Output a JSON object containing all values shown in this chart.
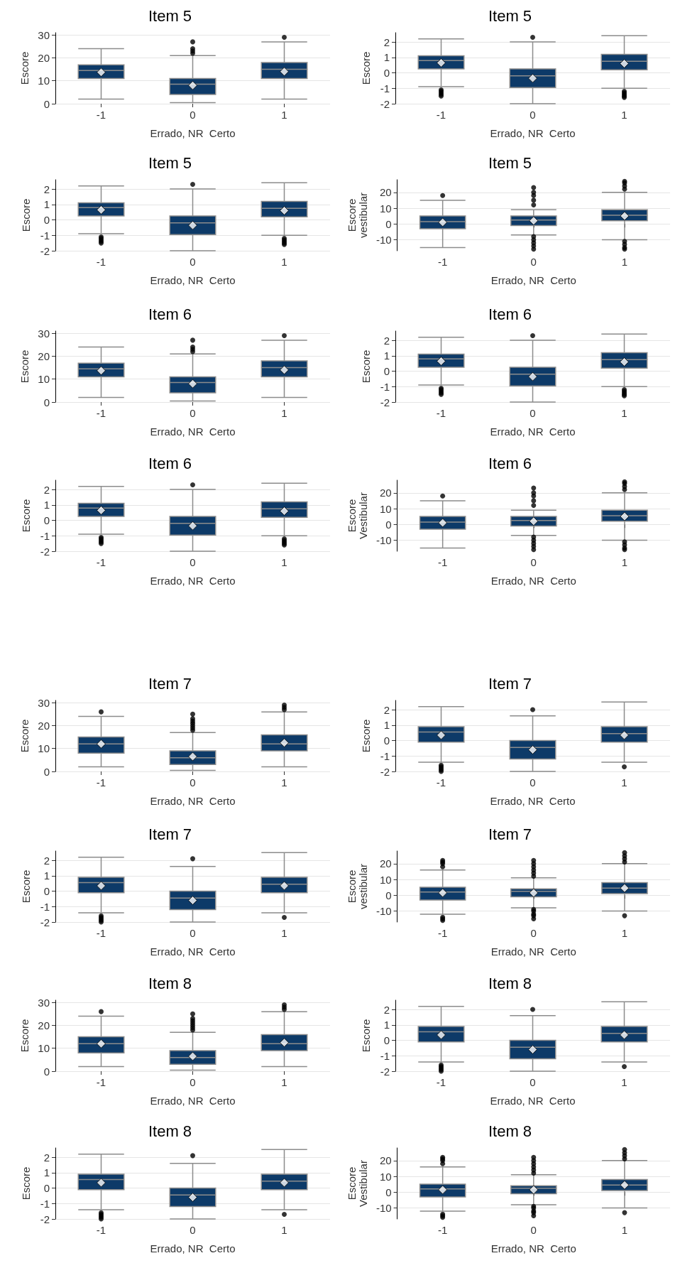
{
  "chart_data": [
    {
      "type": "box",
      "title": "Item 5",
      "xlabel": "Errado, NR  Certo",
      "ylabel": "Escore",
      "categories": [
        "-1",
        "0",
        "1"
      ],
      "color": "#0d3a68",
      "grid": "y",
      "ylim": [
        0,
        31
      ],
      "yticks": [
        0,
        10,
        20,
        30
      ],
      "boxes": [
        {
          "low": 2,
          "q1": 11,
          "median": 14.5,
          "q3": 17,
          "high": 24,
          "mean": 13.7
        },
        {
          "low": 0.5,
          "q1": 4,
          "median": 8.5,
          "q3": 11,
          "high": 21,
          "mean": 8,
          "outliers": [
            22,
            23,
            24,
            27
          ]
        },
        {
          "low": 2,
          "q1": 11,
          "median": 15,
          "q3": 18,
          "high": 27,
          "mean": 14,
          "outliers": [
            29
          ]
        }
      ]
    },
    {
      "type": "box",
      "title": "Item 5",
      "xlabel": "Errado, NR  Certo",
      "ylabel": "Escore",
      "categories": [
        "-1",
        "0",
        "1"
      ],
      "color": "#0d3a68",
      "grid": "y",
      "ylim": [
        -2,
        2.6
      ],
      "yticks": [
        -2,
        -1,
        0,
        1,
        2
      ],
      "boxes": [
        {
          "low": -0.9,
          "q1": 0.25,
          "median": 0.8,
          "q3": 1.1,
          "high": 2.2,
          "mean": 0.65,
          "outliers": [
            -1.1,
            -1.2,
            -1.3,
            -1.4,
            -1.5
          ]
        },
        {
          "low": -2,
          "q1": -0.95,
          "median": -0.2,
          "q3": 0.25,
          "high": 2,
          "mean": -0.35,
          "outliers": [
            2.3
          ]
        },
        {
          "low": -1,
          "q1": 0.2,
          "median": 0.75,
          "q3": 1.2,
          "high": 2.4,
          "mean": 0.6,
          "outliers": [
            -1.2,
            -1.3,
            -1.4,
            -1.5,
            -1.6
          ]
        }
      ]
    },
    {
      "type": "box",
      "title": "Item 5",
      "xlabel": "Errado, NR  Certo",
      "ylabel": "Escore",
      "categories": [
        "-1",
        "0",
        "1"
      ],
      "color": "#0d3a68",
      "grid": "y",
      "ylim": [
        -2,
        2.6
      ],
      "yticks": [
        -2,
        -1,
        0,
        1,
        2
      ],
      "boxes": [
        {
          "low": -0.9,
          "q1": 0.25,
          "median": 0.8,
          "q3": 1.1,
          "high": 2.2,
          "mean": 0.65,
          "outliers": [
            -1.1,
            -1.2,
            -1.3,
            -1.4,
            -1.5
          ]
        },
        {
          "low": -2,
          "q1": -0.95,
          "median": -0.2,
          "q3": 0.25,
          "high": 2,
          "mean": -0.35,
          "outliers": [
            2.3
          ]
        },
        {
          "low": -1,
          "q1": 0.2,
          "median": 0.75,
          "q3": 1.2,
          "high": 2.4,
          "mean": 0.6,
          "outliers": [
            -1.2,
            -1.3,
            -1.4,
            -1.5,
            -1.6
          ]
        }
      ]
    },
    {
      "type": "box",
      "title": "Item 5",
      "xlabel": "Errado, NR  Certo",
      "ylabel": "Escore vestibular",
      "categories": [
        "-1",
        "0",
        "1"
      ],
      "color": "#0d3a68",
      "grid": "y",
      "ylim": [
        -17,
        28
      ],
      "yticks": [
        -10,
        0,
        10,
        20
      ],
      "boxes": [
        {
          "low": -15,
          "q1": -3,
          "median": 1.5,
          "q3": 5,
          "high": 15,
          "mean": 1,
          "outliers": [
            18
          ]
        },
        {
          "low": -7,
          "q1": -1,
          "median": 2.5,
          "q3": 5,
          "high": 9,
          "mean": 2,
          "outliers": [
            -8,
            -10,
            -12,
            -14,
            -16,
            12,
            15,
            18,
            20,
            23
          ]
        },
        {
          "low": -10,
          "q1": 2,
          "median": 5.5,
          "q3": 9,
          "high": 20,
          "mean": 5,
          "outliers": [
            -11,
            -13,
            -15,
            -16,
            22,
            24,
            26,
            27
          ]
        }
      ]
    },
    {
      "type": "box",
      "title": "Item 6",
      "xlabel": "Errado, NR  Certo",
      "ylabel": "Escore",
      "categories": [
        "-1",
        "0",
        "1"
      ],
      "color": "#0d3a68",
      "grid": "y",
      "ylim": [
        0,
        31
      ],
      "yticks": [
        0,
        10,
        20,
        30
      ],
      "boxes": [
        {
          "low": 2,
          "q1": 11,
          "median": 14.5,
          "q3": 17,
          "high": 24,
          "mean": 13.7
        },
        {
          "low": 0.5,
          "q1": 4,
          "median": 8.5,
          "q3": 11,
          "high": 21,
          "mean": 8,
          "outliers": [
            22,
            23,
            24,
            27
          ]
        },
        {
          "low": 2,
          "q1": 11,
          "median": 15,
          "q3": 18,
          "high": 27,
          "mean": 14,
          "outliers": [
            29
          ]
        }
      ]
    },
    {
      "type": "box",
      "title": "Item 6",
      "xlabel": "Errado, NR  Certo",
      "ylabel": "Escore",
      "categories": [
        "-1",
        "0",
        "1"
      ],
      "color": "#0d3a68",
      "grid": "y",
      "ylim": [
        -2,
        2.6
      ],
      "yticks": [
        -2,
        -1,
        0,
        1,
        2
      ],
      "boxes": [
        {
          "low": -0.9,
          "q1": 0.25,
          "median": 0.8,
          "q3": 1.1,
          "high": 2.2,
          "mean": 0.65,
          "outliers": [
            -1.1,
            -1.2,
            -1.3,
            -1.4,
            -1.5
          ]
        },
        {
          "low": -2,
          "q1": -0.95,
          "median": -0.2,
          "q3": 0.25,
          "high": 2,
          "mean": -0.35,
          "outliers": [
            2.3
          ]
        },
        {
          "low": -1,
          "q1": 0.2,
          "median": 0.75,
          "q3": 1.2,
          "high": 2.4,
          "mean": 0.6,
          "outliers": [
            -1.2,
            -1.3,
            -1.4,
            -1.5,
            -1.6
          ]
        }
      ]
    },
    {
      "type": "box",
      "title": "Item 6",
      "xlabel": "Errado, NR  Certo",
      "ylabel": "Escore",
      "categories": [
        "-1",
        "0",
        "1"
      ],
      "color": "#0d3a68",
      "grid": "y",
      "ylim": [
        -2,
        2.6
      ],
      "yticks": [
        -2,
        -1,
        0,
        1,
        2
      ],
      "boxes": [
        {
          "low": -0.9,
          "q1": 0.25,
          "median": 0.8,
          "q3": 1.1,
          "high": 2.2,
          "mean": 0.65,
          "outliers": [
            -1.1,
            -1.2,
            -1.3,
            -1.4,
            -1.5
          ]
        },
        {
          "low": -2,
          "q1": -0.95,
          "median": -0.2,
          "q3": 0.25,
          "high": 2,
          "mean": -0.35,
          "outliers": [
            2.3
          ]
        },
        {
          "low": -1,
          "q1": 0.2,
          "median": 0.75,
          "q3": 1.2,
          "high": 2.4,
          "mean": 0.6,
          "outliers": [
            -1.2,
            -1.3,
            -1.4,
            -1.5,
            -1.6
          ]
        }
      ]
    },
    {
      "type": "box",
      "title": "Item 6",
      "xlabel": "Errado, NR  Certo",
      "ylabel": "Escore Vestibular",
      "categories": [
        "-1",
        "0",
        "1"
      ],
      "color": "#0d3a68",
      "grid": "y",
      "ylim": [
        -17,
        28
      ],
      "yticks": [
        -10,
        0,
        10,
        20
      ],
      "boxes": [
        {
          "low": -15,
          "q1": -3,
          "median": 1.5,
          "q3": 5,
          "high": 15,
          "mean": 1,
          "outliers": [
            18
          ]
        },
        {
          "low": -7,
          "q1": -1,
          "median": 2.5,
          "q3": 5,
          "high": 9,
          "mean": 2,
          "outliers": [
            -8,
            -10,
            -12,
            -14,
            -16,
            12,
            15,
            18,
            20,
            23
          ]
        },
        {
          "low": -10,
          "q1": 2,
          "median": 5.5,
          "q3": 9,
          "high": 20,
          "mean": 5,
          "outliers": [
            -11,
            -13,
            -15,
            -16,
            22,
            24,
            26,
            27
          ]
        }
      ]
    },
    {
      "type": "box",
      "title": "Item 7",
      "xlabel": "Errado, NR  Certo",
      "ylabel": "Escore",
      "categories": [
        "-1",
        "0",
        "1"
      ],
      "color": "#0d3a68",
      "grid": "y",
      "ylim": [
        0,
        31
      ],
      "yticks": [
        0,
        10,
        20,
        30
      ],
      "boxes": [
        {
          "low": 2,
          "q1": 8,
          "median": 12,
          "q3": 15,
          "high": 24,
          "mean": 12,
          "outliers": [
            26
          ]
        },
        {
          "low": 0.5,
          "q1": 3,
          "median": 6,
          "q3": 9,
          "high": 17,
          "mean": 6.5,
          "outliers": [
            18,
            19,
            20,
            21,
            22,
            23,
            25
          ]
        },
        {
          "low": 2,
          "q1": 9,
          "median": 12,
          "q3": 16,
          "high": 26,
          "mean": 12.5,
          "outliers": [
            27,
            28,
            29
          ]
        }
      ]
    },
    {
      "type": "box",
      "title": "Item 7",
      "xlabel": "Errado, NR  Certo",
      "ylabel": "Escore",
      "categories": [
        "-1",
        "0",
        "1"
      ],
      "color": "#0d3a68",
      "grid": "y",
      "ylim": [
        -2,
        2.6
      ],
      "yticks": [
        -2,
        -1,
        0,
        1,
        2
      ],
      "boxes": [
        {
          "low": -1.4,
          "q1": -0.1,
          "median": 0.55,
          "q3": 0.9,
          "high": 2.2,
          "mean": 0.35,
          "outliers": [
            -1.6,
            -1.7,
            -1.8,
            -1.9,
            -2
          ]
        },
        {
          "low": -2,
          "q1": -1.2,
          "median": -0.45,
          "q3": 0,
          "high": 1.6,
          "mean": -0.6,
          "outliers": [
            2
          ]
        },
        {
          "low": -1.4,
          "q1": -0.1,
          "median": 0.45,
          "q3": 0.9,
          "high": 2.5,
          "mean": 0.35,
          "outliers": [
            -1.7
          ]
        }
      ]
    },
    {
      "type": "box",
      "title": "Item 7",
      "xlabel": "Errado, NR  Certo",
      "ylabel": "Escore",
      "categories": [
        "-1",
        "0",
        "1"
      ],
      "color": "#0d3a68",
      "grid": "y",
      "ylim": [
        -2,
        2.6
      ],
      "yticks": [
        -2,
        -1,
        0,
        1,
        2
      ],
      "boxes": [
        {
          "low": -1.4,
          "q1": -0.1,
          "median": 0.55,
          "q3": 0.9,
          "high": 2.2,
          "mean": 0.35,
          "outliers": [
            -1.6,
            -1.7,
            -1.8,
            -1.9,
            -2
          ]
        },
        {
          "low": -2,
          "q1": -1.2,
          "median": -0.45,
          "q3": 0,
          "high": 1.6,
          "mean": -0.6,
          "outliers": [
            2.1
          ]
        },
        {
          "low": -1.4,
          "q1": -0.1,
          "median": 0.45,
          "q3": 0.9,
          "high": 2.5,
          "mean": 0.35,
          "outliers": [
            -1.7
          ]
        }
      ]
    },
    {
      "type": "box",
      "title": "Item 7",
      "xlabel": "Errado, NR  Certo",
      "ylabel": "Escore vestibular",
      "categories": [
        "-1",
        "0",
        "1"
      ],
      "color": "#0d3a68",
      "grid": "y",
      "ylim": [
        -17,
        28
      ],
      "yticks": [
        -10,
        0,
        10,
        20
      ],
      "boxes": [
        {
          "low": -12,
          "q1": -3,
          "median": 2,
          "q3": 5,
          "high": 16,
          "mean": 1.5,
          "outliers": [
            -14,
            -15,
            -16,
            18,
            20,
            21,
            22
          ]
        },
        {
          "low": -8,
          "q1": -1,
          "median": 2.5,
          "q3": 4,
          "high": 11,
          "mean": 1.5,
          "outliers": [
            -9,
            -10,
            -12,
            -13,
            -15,
            12,
            14,
            16,
            18,
            20,
            22
          ]
        },
        {
          "low": -10,
          "q1": 1,
          "median": 4.5,
          "q3": 8,
          "high": 20,
          "mean": 4.5,
          "outliers": [
            -13,
            21,
            23,
            25,
            27
          ]
        }
      ]
    },
    {
      "type": "box",
      "title": "Item 8",
      "xlabel": "Errado, NR  Certo",
      "ylabel": "Escore",
      "categories": [
        "-1",
        "0",
        "1"
      ],
      "color": "#0d3a68",
      "grid": "y",
      "ylim": [
        0,
        31
      ],
      "yticks": [
        0,
        10,
        20,
        30
      ],
      "boxes": [
        {
          "low": 2,
          "q1": 8,
          "median": 12,
          "q3": 15,
          "high": 24,
          "mean": 12,
          "outliers": [
            26
          ]
        },
        {
          "low": 0.5,
          "q1": 3,
          "median": 6,
          "q3": 9,
          "high": 17,
          "mean": 6.5,
          "outliers": [
            18,
            19,
            20,
            21,
            22,
            23,
            25
          ]
        },
        {
          "low": 2,
          "q1": 9,
          "median": 12,
          "q3": 16,
          "high": 26,
          "mean": 12.5,
          "outliers": [
            27,
            28,
            29
          ]
        }
      ]
    },
    {
      "type": "box",
      "title": "Item 8",
      "xlabel": "Errado, NR  Certo",
      "ylabel": "Escore",
      "categories": [
        "-1",
        "0",
        "1"
      ],
      "color": "#0d3a68",
      "grid": "y",
      "ylim": [
        -2,
        2.6
      ],
      "yticks": [
        -2,
        -1,
        0,
        1,
        2
      ],
      "boxes": [
        {
          "low": -1.4,
          "q1": -0.1,
          "median": 0.55,
          "q3": 0.9,
          "high": 2.2,
          "mean": 0.35,
          "outliers": [
            -1.6,
            -1.7,
            -1.8,
            -1.9,
            -2
          ]
        },
        {
          "low": -2,
          "q1": -1.2,
          "median": -0.45,
          "q3": 0,
          "high": 1.6,
          "mean": -0.6,
          "outliers": [
            2
          ]
        },
        {
          "low": -1.4,
          "q1": -0.1,
          "median": 0.45,
          "q3": 0.9,
          "high": 2.5,
          "mean": 0.35,
          "outliers": [
            -1.7
          ]
        }
      ]
    },
    {
      "type": "box",
      "title": "Item 8",
      "xlabel": "Errado, NR  Certo",
      "ylabel": "Escore",
      "categories": [
        "-1",
        "0",
        "1"
      ],
      "color": "#0d3a68",
      "grid": "y",
      "ylim": [
        -2,
        2.6
      ],
      "yticks": [
        -2,
        -1,
        0,
        1,
        2
      ],
      "boxes": [
        {
          "low": -1.4,
          "q1": -0.1,
          "median": 0.55,
          "q3": 0.9,
          "high": 2.2,
          "mean": 0.35,
          "outliers": [
            -1.6,
            -1.7,
            -1.8,
            -1.9,
            -2
          ]
        },
        {
          "low": -2,
          "q1": -1.2,
          "median": -0.45,
          "q3": 0,
          "high": 1.6,
          "mean": -0.6,
          "outliers": [
            2.1
          ]
        },
        {
          "low": -1.4,
          "q1": -0.1,
          "median": 0.45,
          "q3": 0.9,
          "high": 2.5,
          "mean": 0.35,
          "outliers": [
            -1.7
          ]
        }
      ]
    },
    {
      "type": "box",
      "title": "Item 8",
      "xlabel": "Errado, NR  Certo",
      "ylabel": "Escore Vestibular",
      "categories": [
        "-1",
        "0",
        "1"
      ],
      "color": "#0d3a68",
      "grid": "y",
      "ylim": [
        -17,
        28
      ],
      "yticks": [
        -10,
        0,
        10,
        20
      ],
      "boxes": [
        {
          "low": -12,
          "q1": -3,
          "median": 2,
          "q3": 5,
          "high": 16,
          "mean": 1.5,
          "outliers": [
            -14,
            -15,
            -16,
            18,
            20,
            21,
            22
          ]
        },
        {
          "low": -8,
          "q1": -1,
          "median": 2.5,
          "q3": 4,
          "high": 11,
          "mean": 1.5,
          "outliers": [
            -9,
            -10,
            -12,
            -13,
            -15,
            12,
            14,
            16,
            18,
            20,
            22
          ]
        },
        {
          "low": -10,
          "q1": 1,
          "median": 4.5,
          "q3": 8,
          "high": 20,
          "mean": 4.5,
          "outliers": [
            -13,
            21,
            23,
            25,
            27
          ]
        }
      ]
    }
  ]
}
